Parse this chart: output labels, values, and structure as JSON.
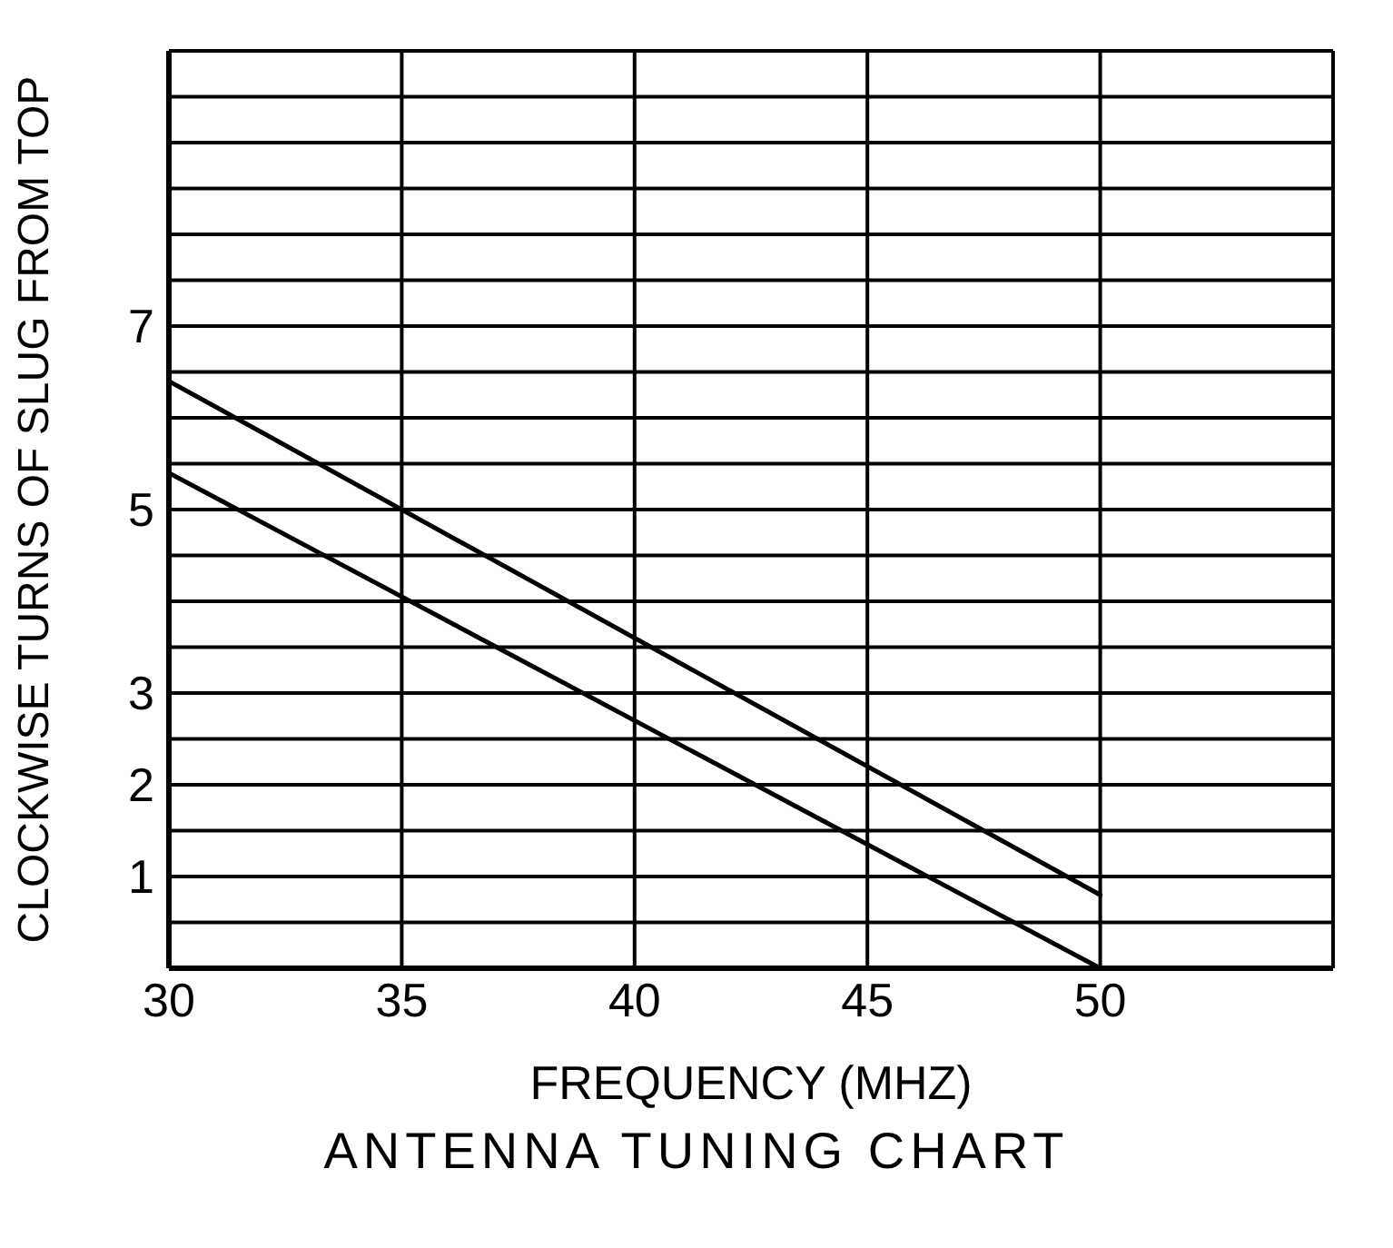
{
  "chart_data": {
    "type": "line",
    "title": "ANTENNA TUNING CHART",
    "xlabel": "FREQUENCY (MHZ)",
    "ylabel": "CLOCKWISE TURNS OF SLUG FROM TOP",
    "x": [
      30,
      50
    ],
    "series": [
      {
        "color": "#000000",
        "values": [
          6.4,
          0.8
        ]
      },
      {
        "color": "#000000",
        "values": [
          5.4,
          0
        ]
      }
    ],
    "xlim": [
      30,
      55
    ],
    "xticks": [
      30,
      35,
      40,
      45,
      50,
      {
        "value": 55,
        "label": null
      }
    ],
    "ylim": [
      0,
      10
    ],
    "yticks": [
      {
        "value": 0,
        "label": null
      },
      {
        "value": 0.5,
        "label": null
      },
      1,
      {
        "value": 1.5,
        "label": null
      },
      2,
      {
        "value": 2.5,
        "label": null
      },
      3,
      {
        "value": 3.5,
        "label": null
      },
      {
        "value": 4,
        "label": null
      },
      {
        "value": 4.5,
        "label": null
      },
      5,
      {
        "value": 5.5,
        "label": null
      },
      {
        "value": 6,
        "label": null
      },
      {
        "value": 6.5,
        "label": null
      },
      7,
      {
        "value": 7.5,
        "label": null
      },
      {
        "value": 8,
        "label": null
      },
      {
        "value": 8.5,
        "label": null
      },
      {
        "value": 9,
        "label": null
      },
      {
        "value": 9.5,
        "label": null
      },
      {
        "value": 10,
        "label": null
      }
    ],
    "grid": true,
    "marker": "none",
    "line_style": "solid"
  }
}
